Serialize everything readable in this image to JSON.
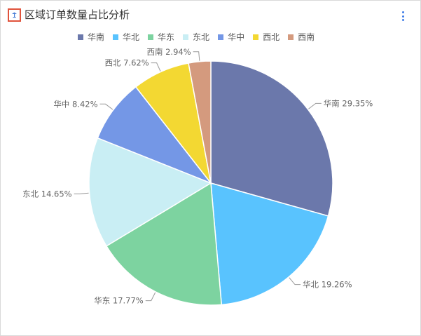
{
  "header": {
    "title": "区域订单数量占比分析",
    "icon": "pin-icon",
    "more_icon": "more-vertical-icon"
  },
  "chart_data": {
    "type": "pie",
    "title": "区域订单数量占比分析",
    "legend_position": "top",
    "categories": [
      "华南",
      "华北",
      "华东",
      "东北",
      "华中",
      "西北",
      "西南"
    ],
    "values": [
      29.35,
      19.26,
      17.77,
      14.65,
      8.42,
      7.62,
      2.94
    ],
    "labels": [
      "华南 29.35%",
      "华北 19.26%",
      "华东 17.77%",
      "东北 14.65%",
      "华中 8.42%",
      "西北 7.62%",
      "西南 2.94%"
    ],
    "colors": [
      "#6b78ab",
      "#59c3fe",
      "#7dd3a0",
      "#c9eef4",
      "#7497e6",
      "#f3d832",
      "#d49a7e"
    ]
  }
}
